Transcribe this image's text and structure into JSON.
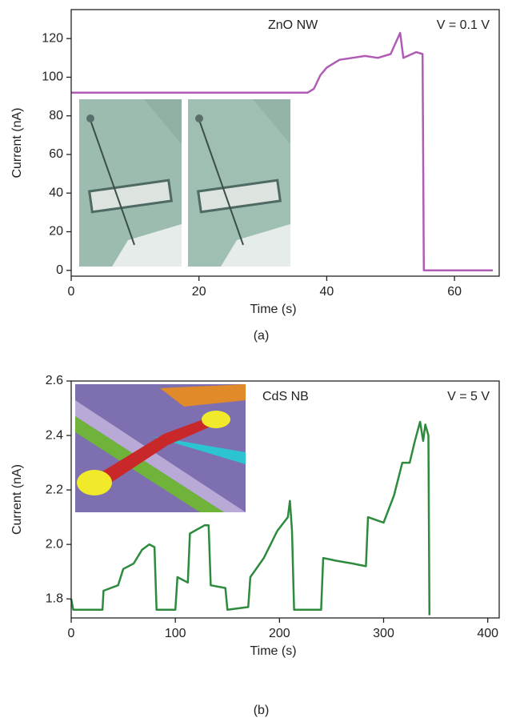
{
  "chart_data": [
    {
      "type": "line",
      "panel_label": "(a)",
      "x_label": "Time (s)",
      "y_label": "Current (nA)",
      "annotations": [
        "ZnO NW",
        "V = 0.1 V"
      ],
      "x": [
        0,
        10,
        20,
        30,
        37,
        38,
        39,
        40,
        42,
        44,
        46,
        48,
        50,
        51.5,
        52,
        54,
        55,
        55.2,
        58,
        62,
        66
      ],
      "series": [
        {
          "color": "#b05cb5",
          "values": [
            92,
            92,
            92,
            92,
            92,
            94,
            101,
            105,
            109,
            110,
            111,
            110,
            112,
            123,
            110,
            113,
            112,
            0,
            0,
            0,
            0
          ]
        }
      ],
      "xlim": [
        0,
        67
      ],
      "ylim": [
        -3,
        135
      ],
      "xticks": [
        0,
        20,
        40,
        60
      ],
      "yticks": [
        0,
        20,
        40,
        60,
        80,
        100,
        120
      ]
    },
    {
      "type": "line",
      "panel_label": "(b)",
      "x_label": "Time (s)",
      "y_label": "Current (nA)",
      "annotations": [
        "CdS NB",
        "V = 5 V"
      ],
      "x": [
        0,
        2,
        30,
        31,
        45,
        50,
        60,
        68,
        75,
        80,
        82,
        100,
        102,
        112,
        114,
        128,
        132,
        134,
        148,
        150,
        170,
        172,
        185,
        198,
        208,
        210,
        212,
        214,
        240,
        242,
        255,
        270,
        283,
        285,
        300,
        310,
        318,
        325,
        330,
        335,
        338,
        340,
        343,
        344
      ],
      "series": [
        {
          "color": "#2e8b3e",
          "values": [
            1.8,
            1.76,
            1.76,
            1.83,
            1.85,
            1.91,
            1.93,
            1.98,
            2.0,
            1.99,
            1.76,
            1.76,
            1.88,
            1.86,
            2.04,
            2.07,
            2.07,
            1.85,
            1.84,
            1.76,
            1.77,
            1.88,
            1.95,
            2.05,
            2.1,
            2.16,
            2.05,
            1.76,
            1.76,
            1.95,
            1.94,
            1.93,
            1.92,
            2.1,
            2.08,
            2.18,
            2.3,
            2.3,
            2.38,
            2.45,
            2.38,
            2.44,
            2.4,
            1.74
          ]
        }
      ],
      "xlim": [
        0,
        411
      ],
      "ylim": [
        1.73,
        2.6
      ],
      "xticks": [
        0,
        100,
        200,
        300,
        400
      ],
      "yticks": [
        1.8,
        {
          "value": 2,
          "label": "2.0"
        },
        2.2,
        2.4,
        2.6
      ]
    }
  ]
}
